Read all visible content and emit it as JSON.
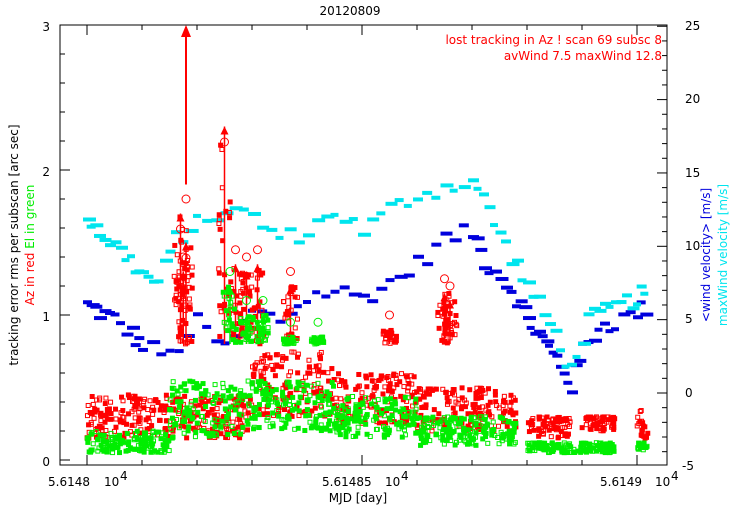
{
  "chart_data": {
    "type": "scatter",
    "title": "20120809",
    "xlabel": "MJD [day]",
    "ylabel_left": {
      "line1": "tracking error rms per subscan [arc sec]",
      "line2_red": "Az in red",
      "line2_green": "El in green"
    },
    "ylabel_right": {
      "blue": "<wind velocity> [m/s]",
      "cyan": "maxWind velocity [m/s]"
    },
    "annotations": [
      "lost tracking in Az ! scan 69 subsc 8",
      "avWind 7.5 maxWind 12.8"
    ],
    "x_ticks": [
      {
        "value": 56148.0,
        "label": "5.6148",
        "exp": "10",
        "pow": "4"
      },
      {
        "value": 56148.5,
        "label": "5.61485",
        "exp": "10",
        "pow": "4"
      },
      {
        "value": 56149.0,
        "label": "5.6149",
        "exp": "10",
        "pow": "4"
      }
    ],
    "xlim": [
      56147.9,
      56149.03
    ],
    "ylim_left": [
      -0.03,
      3.0
    ],
    "ylim_right": [
      -5,
      25
    ],
    "y_ticks_left": [
      "0",
      "1",
      "2",
      "3"
    ],
    "y_ticks_right": [
      "-5",
      "0",
      "5",
      "10",
      "15",
      "20",
      "25"
    ],
    "series": [
      {
        "name": "Az tracking error rms",
        "axis": "left",
        "color": "#ff0000",
        "bands": [
          {
            "x0": 56148.0,
            "x1": 56148.3,
            "ymin": 0.15,
            "ymax": 0.45
          },
          {
            "x0": 56148.3,
            "x1": 56148.45,
            "ymin": 0.3,
            "ymax": 0.75
          },
          {
            "x0": 56148.45,
            "x1": 56148.6,
            "ymin": 0.25,
            "ymax": 0.6
          },
          {
            "x0": 56148.6,
            "x1": 56148.75,
            "ymin": 0.2,
            "ymax": 0.5
          },
          {
            "x0": 56148.75,
            "x1": 56148.78,
            "ymin": 0.2,
            "ymax": 0.45
          },
          {
            "x0": 56148.8,
            "x1": 56148.88,
            "ymin": 0.15,
            "ymax": 0.3
          },
          {
            "x0": 56148.9,
            "x1": 56148.96,
            "ymin": 0.2,
            "ymax": 0.3
          },
          {
            "x0": 56149.0,
            "x1": 56149.02,
            "ymin": 0.15,
            "ymax": 0.35
          }
        ],
        "peaks": [
          {
            "x": 56148.17,
            "y": 1.7
          },
          {
            "x": 56148.18,
            "y": 1.5
          },
          {
            "x": 56148.175,
            "y": 1.3
          },
          {
            "x": 56148.25,
            "y": 2.3
          },
          {
            "x": 56148.27,
            "y": 1.35
          },
          {
            "x": 56148.31,
            "y": 1.35
          },
          {
            "x": 56148.29,
            "y": 1.3
          },
          {
            "x": 56148.37,
            "y": 1.2
          },
          {
            "x": 56148.55,
            "y": 0.9
          },
          {
            "x": 56148.65,
            "y": 1.15
          },
          {
            "x": 56148.66,
            "y": 1.1
          }
        ],
        "lost_tracking_arrow": {
          "x": 56148.18,
          "y_from": 1.9,
          "y_to": 3.0
        }
      },
      {
        "name": "El tracking error rms",
        "axis": "left",
        "color": "#00ee00",
        "bands": [
          {
            "x0": 56148.0,
            "x1": 56148.15,
            "ymin": 0.05,
            "ymax": 0.2
          },
          {
            "x0": 56148.15,
            "x1": 56148.3,
            "ymin": 0.15,
            "ymax": 0.55
          },
          {
            "x0": 56148.3,
            "x1": 56148.45,
            "ymin": 0.2,
            "ymax": 0.55
          },
          {
            "x0": 56148.45,
            "x1": 56148.6,
            "ymin": 0.15,
            "ymax": 0.45
          },
          {
            "x0": 56148.6,
            "x1": 56148.78,
            "ymin": 0.1,
            "ymax": 0.3
          },
          {
            "x0": 56148.8,
            "x1": 56148.96,
            "ymin": 0.05,
            "ymax": 0.12
          },
          {
            "x0": 56149.0,
            "x1": 56149.02,
            "ymin": 0.07,
            "ymax": 0.12
          }
        ],
        "peaks": [
          {
            "x": 56148.26,
            "y": 1.2
          },
          {
            "x": 56148.29,
            "y": 1.0
          },
          {
            "x": 56148.32,
            "y": 1.0
          },
          {
            "x": 56148.37,
            "y": 0.85
          },
          {
            "x": 56148.42,
            "y": 0.85
          }
        ]
      },
      {
        "name": "wind velocity (mean)",
        "axis": "right",
        "color": "#0000dd",
        "points": [
          [
            56148.0,
            6.0
          ],
          [
            56148.02,
            5.5
          ],
          [
            56148.05,
            5.0
          ],
          [
            56148.08,
            4.0
          ],
          [
            56148.1,
            3.2
          ],
          [
            56148.15,
            2.5
          ],
          [
            56148.2,
            4.8
          ],
          [
            56148.25,
            3.0
          ],
          [
            56148.3,
            5.5
          ],
          [
            56148.35,
            5.0
          ],
          [
            56148.4,
            6.5
          ],
          [
            56148.45,
            7.0
          ],
          [
            56148.5,
            6.5
          ],
          [
            56148.55,
            7.5
          ],
          [
            56148.6,
            8.8
          ],
          [
            56148.65,
            10.5
          ],
          [
            56148.7,
            11.0
          ],
          [
            56148.72,
            9.0
          ],
          [
            56148.75,
            8.0
          ],
          [
            56148.78,
            6.5
          ],
          [
            56148.8,
            5.0
          ],
          [
            56148.82,
            4.0
          ],
          [
            56148.84,
            3.0
          ],
          [
            56148.86,
            2.0
          ],
          [
            56148.88,
            0.5
          ],
          [
            56148.9,
            3.0
          ],
          [
            56148.93,
            4.5
          ],
          [
            56148.96,
            4.8
          ],
          [
            56149.0,
            5.5
          ],
          [
            56149.02,
            6.0
          ]
        ]
      },
      {
        "name": "maxWind velocity",
        "axis": "right",
        "color": "#00e5ee",
        "points": [
          [
            56148.0,
            12.0
          ],
          [
            56148.02,
            11.0
          ],
          [
            56148.05,
            10.0
          ],
          [
            56148.08,
            9.0
          ],
          [
            56148.1,
            8.0
          ],
          [
            56148.13,
            7.5
          ],
          [
            56148.16,
            10.5
          ],
          [
            56148.2,
            11.5
          ],
          [
            56148.25,
            12.5
          ],
          [
            56148.3,
            12.0
          ],
          [
            56148.35,
            10.5
          ],
          [
            56148.4,
            11.0
          ],
          [
            56148.45,
            12.5
          ],
          [
            56148.5,
            11.0
          ],
          [
            56148.55,
            12.5
          ],
          [
            56148.6,
            13.5
          ],
          [
            56148.65,
            14.0
          ],
          [
            56148.7,
            14.5
          ],
          [
            56148.73,
            12.5
          ],
          [
            56148.76,
            10.0
          ],
          [
            56148.79,
            8.0
          ],
          [
            56148.82,
            6.0
          ],
          [
            56148.85,
            4.0
          ],
          [
            56148.88,
            1.5
          ],
          [
            56148.91,
            5.0
          ],
          [
            56148.94,
            5.5
          ],
          [
            56148.97,
            6.0
          ],
          [
            56149.0,
            6.5
          ],
          [
            56149.02,
            7.0
          ]
        ]
      }
    ]
  }
}
